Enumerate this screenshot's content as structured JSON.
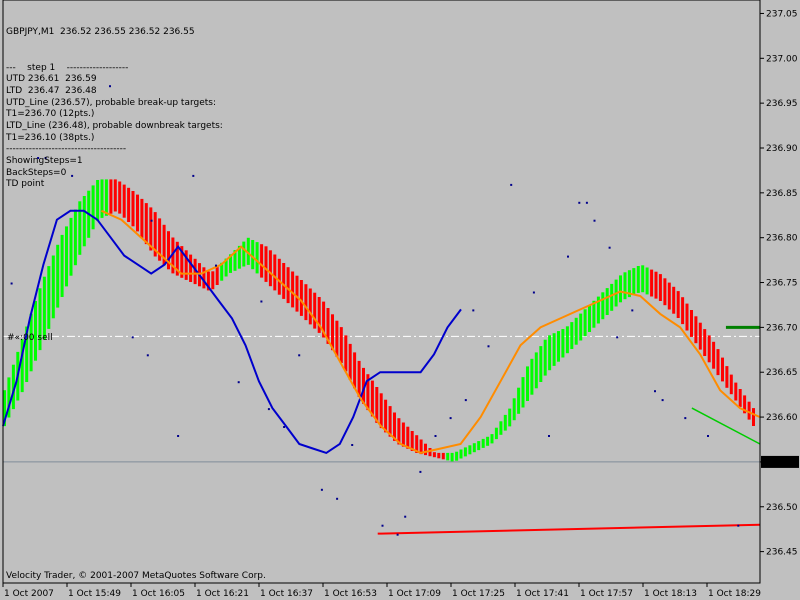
{
  "window": {
    "symbol_line": "GBPJPY,M1  236.52 236.55 236.52 236.55",
    "info_lines": [
      "---    step 1    -------------------",
      "UTD 236.61  236.59",
      "LTD  236.47  236.48",
      "UTD_Line (236.57), probable break-up targets:",
      "T1=236.70 (12pts.)",
      "LTD_Line (236.48), probable downbreak targets:",
      "T1=236.10 (38pts.)",
      "-------------------------------------",
      "ShowingSteps=1",
      "BackSteps=0",
      "TD point"
    ],
    "copyright": "Velocity Trader, © 2001-2007 MetaQuotes Software Corp.",
    "line_label": "#«:00   sell",
    "current_price": "236.55"
  },
  "colors": {
    "background": "#c0c0c0",
    "up_bar": "#00ff00",
    "down_bar": "#ff0000",
    "blue_line": "#0000cc",
    "orange_line": "#ff8c00",
    "red_trendline": "#ff0000",
    "green_trendline": "#00cc00",
    "dots": "#00008b"
  },
  "chart_data": {
    "type": "line",
    "ylim": [
      236.415,
      237.065
    ],
    "y_ticks": [
      "237.05",
      "237.00",
      "236.95",
      "236.90",
      "236.85",
      "236.80",
      "236.75",
      "236.70",
      "236.65",
      "236.60",
      "236.55",
      "236.50",
      "236.45"
    ],
    "x_ticks": [
      "1 Oct 2007",
      "1 Oct 15:49",
      "1 Oct 16:05",
      "1 Oct 16:21",
      "1 Oct 16:37",
      "1 Oct 16:53",
      "1 Oct 17:09",
      "1 Oct 17:25",
      "1 Oct 17:41",
      "1 Oct 17:57",
      "1 Oct 18:13",
      "1 Oct 18:29"
    ],
    "bars": {
      "top": [
        236.63,
        236.69,
        236.75,
        236.8,
        236.84,
        236.865,
        236.865,
        236.85,
        236.83,
        236.8,
        236.78,
        236.76,
        236.78,
        236.8,
        236.79,
        236.77,
        236.75,
        236.73,
        236.7,
        236.66,
        236.63,
        236.6,
        236.58,
        236.56,
        236.56,
        236.57,
        236.58,
        236.61,
        236.66,
        236.69,
        236.7,
        236.72,
        236.74,
        236.76,
        236.77,
        236.76,
        236.74,
        236.71,
        236.68,
        236.64,
        236.61
      ],
      "bottom": [
        236.59,
        236.63,
        236.68,
        236.73,
        236.78,
        236.82,
        236.83,
        236.81,
        236.78,
        236.76,
        236.75,
        236.74,
        236.76,
        236.77,
        236.75,
        236.73,
        236.71,
        236.69,
        236.66,
        236.62,
        236.59,
        236.57,
        236.56,
        236.555,
        236.55,
        236.56,
        236.57,
        236.59,
        236.62,
        236.65,
        236.67,
        236.69,
        236.71,
        236.73,
        236.74,
        236.73,
        236.71,
        236.68,
        236.65,
        236.62,
        236.59
      ],
      "direction": [
        "up",
        "up",
        "up",
        "up",
        "up",
        "up",
        "down",
        "down",
        "down",
        "down",
        "down",
        "down",
        "up",
        "up",
        "down",
        "down",
        "down",
        "down",
        "down",
        "down",
        "down",
        "down",
        "down",
        "down",
        "up",
        "up",
        "up",
        "up",
        "up",
        "up",
        "up",
        "up",
        "up",
        "up",
        "up",
        "down",
        "down",
        "down",
        "down",
        "down",
        "down"
      ]
    },
    "blue_line": {
      "start": 0,
      "end": 0.605,
      "values": [
        236.59,
        236.64,
        236.71,
        236.77,
        236.82,
        236.83,
        236.83,
        236.82,
        236.8,
        236.78,
        236.77,
        236.76,
        236.77,
        236.79,
        236.77,
        236.75,
        236.73,
        236.71,
        236.68,
        236.64,
        236.61,
        236.59,
        236.57,
        236.565,
        236.56,
        236.57,
        236.6,
        236.64,
        236.65,
        236.65,
        236.65,
        236.65,
        236.67,
        236.7,
        236.72
      ]
    },
    "orange_line": {
      "start": 0.13,
      "end": 1.0,
      "values": [
        236.83,
        236.82,
        236.8,
        236.78,
        236.76,
        236.76,
        236.77,
        236.79,
        236.77,
        236.75,
        236.73,
        236.7,
        236.66,
        236.62,
        236.59,
        236.57,
        236.56,
        236.565,
        236.57,
        236.6,
        236.64,
        236.68,
        236.7,
        236.71,
        236.72,
        236.73,
        236.74,
        236.735,
        236.715,
        236.7,
        236.67,
        236.63,
        236.61,
        236.6
      ]
    },
    "dots": {
      "x": [
        0.01,
        0.045,
        0.055,
        0.09,
        0.14,
        0.17,
        0.19,
        0.195,
        0.23,
        0.25,
        0.28,
        0.31,
        0.34,
        0.35,
        0.37,
        0.39,
        0.42,
        0.44,
        0.46,
        0.5,
        0.52,
        0.53,
        0.55,
        0.57,
        0.59,
        0.61,
        0.62,
        0.64,
        0.67,
        0.7,
        0.72,
        0.745,
        0.76,
        0.77,
        0.78,
        0.8,
        0.81,
        0.83,
        0.86,
        0.87,
        0.9,
        0.93,
        0.97
      ],
      "y": [
        236.75,
        236.89,
        236.89,
        236.87,
        236.97,
        236.69,
        236.67,
        236.82,
        236.58,
        236.87,
        236.77,
        236.64,
        236.73,
        236.61,
        236.59,
        236.67,
        236.52,
        236.51,
        236.57,
        236.48,
        236.47,
        236.49,
        236.54,
        236.58,
        236.6,
        236.62,
        236.72,
        236.68,
        236.86,
        236.74,
        236.58,
        236.78,
        236.84,
        236.84,
        236.82,
        236.79,
        236.69,
        236.72,
        236.63,
        236.62,
        236.6,
        236.58,
        236.48
      ]
    },
    "red_trendline": {
      "x": [
        0.495,
        1.0
      ],
      "y": [
        236.47,
        236.48
      ]
    },
    "green_trendline": {
      "x": [
        0.91,
        1.0
      ],
      "y": [
        236.61,
        236.57
      ]
    },
    "short_green_level": {
      "x": [
        0.955,
        1.0
      ],
      "y": [
        236.7,
        236.7
      ]
    },
    "dash_level": 236.69,
    "price_line": 236.55
  }
}
